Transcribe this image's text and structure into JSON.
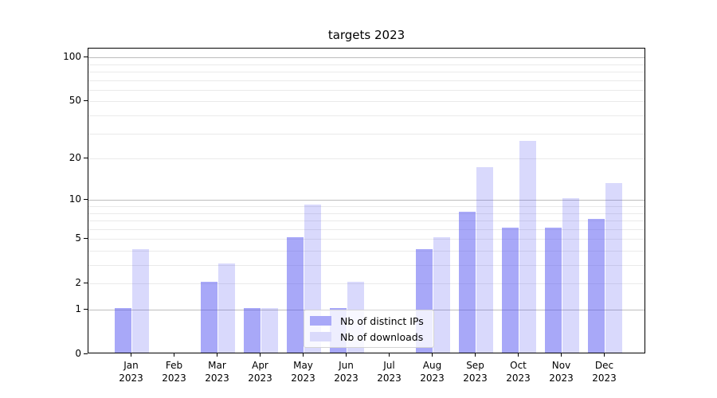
{
  "chart_data": {
    "type": "bar",
    "title": "targets 2023",
    "categories": [
      "Jan 2023",
      "Feb 2023",
      "Mar 2023",
      "Apr 2023",
      "May 2023",
      "Jun 2023",
      "Jul 2023",
      "Aug 2023",
      "Sep 2023",
      "Oct 2023",
      "Nov 2023",
      "Dec 2023"
    ],
    "series": [
      {
        "key": "distinct-ips",
        "name": "Nb of distinct IPs",
        "color": "rgba(82,82,242,0.5)",
        "swatch_color": "#a9a9f8",
        "values": [
          1,
          0,
          2,
          1,
          5,
          1,
          0,
          4,
          8,
          6,
          6,
          7
        ]
      },
      {
        "key": "downloads",
        "name": "Nb of downloads",
        "color": "rgba(82,82,242,0.22)",
        "swatch_color": "#dadafb",
        "values": [
          4,
          0,
          3,
          1,
          9,
          2,
          0,
          5,
          17,
          26,
          10,
          13
        ]
      }
    ],
    "xlabel": "",
    "ylabel": "",
    "y_scale": "log1p",
    "ylim": [
      0,
      115
    ],
    "y_ticks": [
      0,
      1,
      2,
      5,
      10,
      20,
      50,
      100
    ],
    "y_major_gridlines": [
      1,
      10,
      100
    ],
    "y_minor_gridlines": [
      2,
      3,
      4,
      5,
      6,
      7,
      8,
      9,
      20,
      30,
      40,
      50,
      60,
      70,
      80,
      90
    ],
    "grid": true,
    "legend_position": "lower center",
    "colors": {
      "spine": "#000000",
      "major_grid": "#bdbdbd",
      "minor_grid": "#eaeaea"
    }
  }
}
